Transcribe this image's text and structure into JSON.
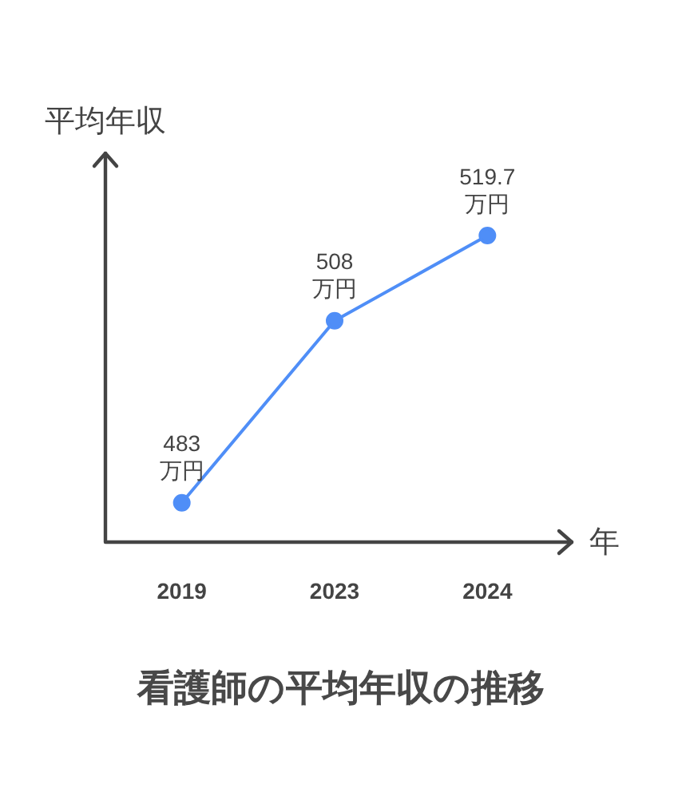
{
  "chart_data": {
    "type": "line",
    "title": "看護師の平均年収の推移",
    "xlabel": "年",
    "ylabel": "平均年収",
    "categories": [
      "2019",
      "2023",
      "2024"
    ],
    "series": [
      {
        "color": "#4f8ef7",
        "values": [
          483,
          508,
          519.7
        ],
        "value_labels": [
          "483\n万円",
          "508\n万円",
          "519.7\n万円"
        ]
      }
    ],
    "ylim": [
      477.6,
      531
    ],
    "marker": "circle"
  }
}
